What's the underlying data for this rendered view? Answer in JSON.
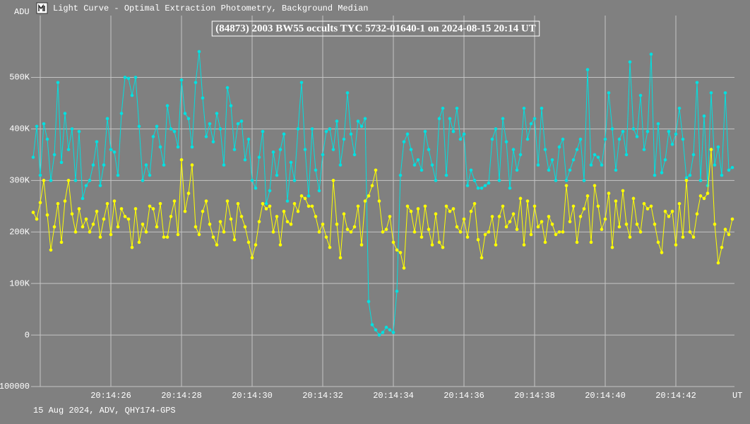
{
  "window_title": "Light Curve - Optimal Extraction Photometry, Background Median",
  "footer": "15 Aug 2024, ADV, QHY174-GPS",
  "chart_data": {
    "type": "line",
    "title": "(84873) 2003 BW55 occults TYC 5732-01640-1 on 2024-08-15  20:14 UT",
    "y_label": "ADU",
    "x_label": "UT",
    "grid": true,
    "xlim": [
      23.74,
      43.66
    ],
    "ylim": [
      -100000,
      620000
    ],
    "xticks": [
      {
        "value": 26,
        "label": "20:14:26"
      },
      {
        "value": 28,
        "label": "20:14:28"
      },
      {
        "value": 30,
        "label": "20:14:30"
      },
      {
        "value": 32,
        "label": "20:14:32"
      },
      {
        "value": 34,
        "label": "20:14:34"
      },
      {
        "value": 36,
        "label": "20:14:36"
      },
      {
        "value": 38,
        "label": "20:14:38"
      },
      {
        "value": 40,
        "label": "20:14:40"
      },
      {
        "value": 42,
        "label": "20:14:42"
      }
    ],
    "yticks": [
      -100000,
      0,
      {
        "value": 100000,
        "label": "100K"
      },
      {
        "value": 200000,
        "label": "200K"
      },
      {
        "value": 300000,
        "label": "300K"
      },
      {
        "value": 400000,
        "label": "400K"
      },
      {
        "value": 500000,
        "label": "500K"
      }
    ],
    "x": [
      23.8,
      23.9,
      24.0,
      24.1,
      24.2,
      24.3,
      24.4,
      24.5,
      24.6,
      24.7,
      24.8,
      24.9,
      25.0,
      25.1,
      25.2,
      25.3,
      25.4,
      25.5,
      25.6,
      25.7,
      25.8,
      25.9,
      26.0,
      26.1,
      26.2,
      26.3,
      26.4,
      26.5,
      26.6,
      26.7,
      26.8,
      26.9,
      27.0,
      27.1,
      27.2,
      27.3,
      27.4,
      27.5,
      27.6,
      27.7,
      27.8,
      27.9,
      28.0,
      28.1,
      28.2,
      28.3,
      28.4,
      28.5,
      28.6,
      28.7,
      28.8,
      28.9,
      29.0,
      29.1,
      29.2,
      29.3,
      29.4,
      29.5,
      29.6,
      29.7,
      29.8,
      29.9,
      30.0,
      30.1,
      30.2,
      30.3,
      30.4,
      30.5,
      30.6,
      30.7,
      30.8,
      30.9,
      31.0,
      31.1,
      31.2,
      31.3,
      31.4,
      31.5,
      31.6,
      31.7,
      31.8,
      31.9,
      32.0,
      32.1,
      32.2,
      32.3,
      32.4,
      32.5,
      32.6,
      32.7,
      32.8,
      32.9,
      33.0,
      33.1,
      33.2,
      33.3,
      33.4,
      33.5,
      33.6,
      33.7,
      33.8,
      33.9,
      34.0,
      34.1,
      34.2,
      34.3,
      34.4,
      34.5,
      34.6,
      34.7,
      34.8,
      34.9,
      35.0,
      35.1,
      35.2,
      35.3,
      35.4,
      35.5,
      35.6,
      35.7,
      35.8,
      35.9,
      36.0,
      36.1,
      36.2,
      36.3,
      36.4,
      36.5,
      36.6,
      36.7,
      36.8,
      36.9,
      37.0,
      37.1,
      37.2,
      37.3,
      37.4,
      37.5,
      37.6,
      37.7,
      37.8,
      37.9,
      38.0,
      38.1,
      38.2,
      38.3,
      38.4,
      38.5,
      38.6,
      38.7,
      38.8,
      38.9,
      39.0,
      39.1,
      39.2,
      39.3,
      39.4,
      39.5,
      39.6,
      39.7,
      39.8,
      39.9,
      40.0,
      40.1,
      40.2,
      40.3,
      40.4,
      40.5,
      40.6,
      40.7,
      40.8,
      40.9,
      41.0,
      41.1,
      41.2,
      41.3,
      41.4,
      41.5,
      41.6,
      41.7,
      41.8,
      41.9,
      42.0,
      42.1,
      42.2,
      42.3,
      42.4,
      42.5,
      42.6,
      42.7,
      42.8,
      42.9,
      43.0,
      43.1,
      43.2,
      43.3,
      43.4,
      43.5,
      43.6
    ],
    "series": [
      {
        "color": "#00e0e0",
        "values": [
          345000,
          405000,
          310000,
          410000,
          380000,
          300000,
          350000,
          490000,
          335000,
          430000,
          360000,
          400000,
          300000,
          395000,
          265000,
          290000,
          300000,
          330000,
          375000,
          290000,
          330000,
          420000,
          360000,
          355000,
          310000,
          430000,
          500000,
          498000,
          465000,
          500000,
          405000,
          300000,
          330000,
          310000,
          385000,
          405000,
          365000,
          330000,
          445000,
          400000,
          395000,
          365000,
          495000,
          430000,
          420000,
          365000,
          490000,
          550000,
          460000,
          385000,
          410000,
          375000,
          430000,
          400000,
          330000,
          480000,
          445000,
          360000,
          410000,
          415000,
          340000,
          380000,
          300000,
          285000,
          345000,
          395000,
          255000,
          280000,
          355000,
          310000,
          360000,
          390000,
          260000,
          335000,
          300000,
          400000,
          490000,
          360000,
          270000,
          400000,
          320000,
          280000,
          350000,
          395000,
          400000,
          360000,
          415000,
          330000,
          380000,
          470000,
          390000,
          350000,
          415000,
          405000,
          420000,
          65000,
          20000,
          10000,
          0,
          5000,
          15000,
          10000,
          5000,
          85000,
          310000,
          375000,
          390000,
          360000,
          330000,
          340000,
          320000,
          395000,
          360000,
          330000,
          300000,
          420000,
          440000,
          310000,
          420000,
          395000,
          440000,
          380000,
          390000,
          290000,
          320000,
          300000,
          285000,
          285000,
          290000,
          295000,
          380000,
          400000,
          300000,
          420000,
          375000,
          285000,
          360000,
          320000,
          350000,
          440000,
          380000,
          410000,
          420000,
          330000,
          440000,
          360000,
          320000,
          340000,
          300000,
          365000,
          380000,
          300000,
          320000,
          340000,
          360000,
          380000,
          300000,
          515000,
          330000,
          350000,
          345000,
          330000,
          380000,
          470000,
          400000,
          320000,
          380000,
          395000,
          350000,
          530000,
          400000,
          385000,
          465000,
          360000,
          395000,
          545000,
          310000,
          410000,
          315000,
          340000,
          395000,
          370000,
          390000,
          440000,
          380000,
          305000,
          310000,
          350000,
          490000,
          300000,
          425000,
          290000,
          470000,
          330000,
          365000,
          310000,
          470000,
          320000,
          325000
        ]
      },
      {
        "color": "#ffff00",
        "values": [
          238000,
          225000,
          257000,
          300000,
          233000,
          165000,
          210000,
          255000,
          180000,
          260000,
          300000,
          235000,
          200000,
          245000,
          210000,
          225000,
          200000,
          215000,
          240000,
          190000,
          225000,
          255000,
          195000,
          260000,
          210000,
          245000,
          230000,
          225000,
          170000,
          245000,
          180000,
          215000,
          200000,
          250000,
          245000,
          210000,
          255000,
          190000,
          190000,
          230000,
          260000,
          195000,
          340000,
          240000,
          275000,
          330000,
          210000,
          195000,
          240000,
          260000,
          215000,
          190000,
          175000,
          220000,
          200000,
          260000,
          225000,
          185000,
          255000,
          230000,
          210000,
          180000,
          150000,
          175000,
          220000,
          255000,
          245000,
          250000,
          200000,
          230000,
          175000,
          240000,
          220000,
          215000,
          255000,
          240000,
          270000,
          265000,
          250000,
          250000,
          230000,
          200000,
          215000,
          190000,
          170000,
          300000,
          215000,
          150000,
          235000,
          205000,
          200000,
          210000,
          250000,
          175000,
          260000,
          270000,
          290000,
          320000,
          260000,
          200000,
          205000,
          230000,
          180000,
          165000,
          160000,
          130000,
          250000,
          240000,
          200000,
          245000,
          190000,
          250000,
          205000,
          175000,
          235000,
          180000,
          170000,
          250000,
          240000,
          245000,
          210000,
          200000,
          225000,
          190000,
          240000,
          255000,
          185000,
          150000,
          195000,
          200000,
          230000,
          175000,
          230000,
          250000,
          210000,
          220000,
          235000,
          205000,
          265000,
          175000,
          260000,
          195000,
          250000,
          210000,
          220000,
          180000,
          230000,
          215000,
          195000,
          200000,
          200000,
          290000,
          220000,
          250000,
          180000,
          230000,
          245000,
          270000,
          180000,
          290000,
          250000,
          205000,
          225000,
          275000,
          170000,
          260000,
          210000,
          280000,
          215000,
          190000,
          265000,
          215000,
          200000,
          255000,
          245000,
          250000,
          215000,
          180000,
          160000,
          240000,
          230000,
          240000,
          175000,
          255000,
          190000,
          300000,
          200000,
          190000,
          235000,
          270000,
          265000,
          275000,
          360000,
          215000,
          140000,
          170000,
          205000,
          195000,
          225000
        ]
      }
    ]
  }
}
